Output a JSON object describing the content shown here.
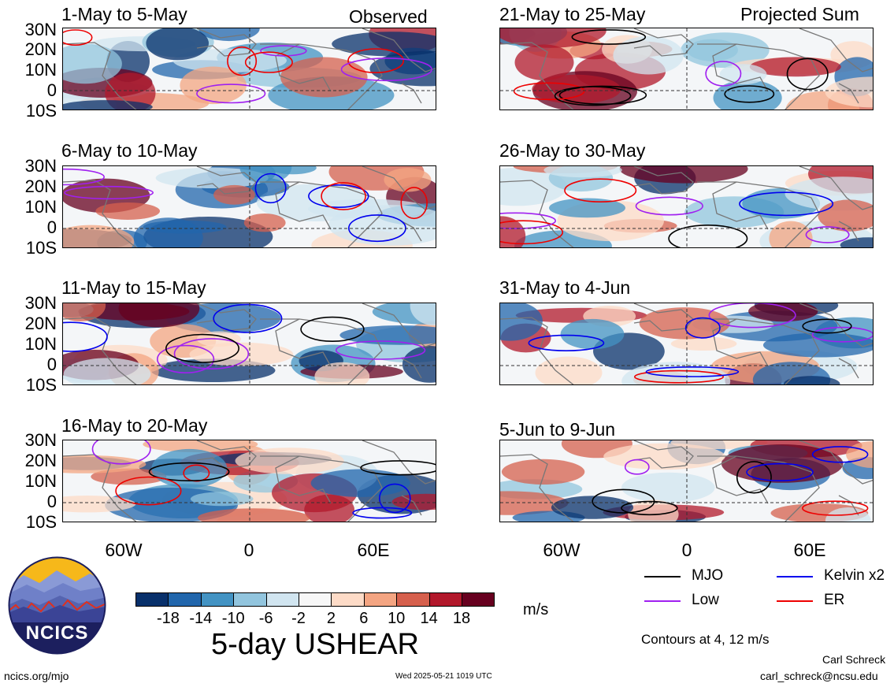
{
  "header": {
    "left_title": "Observed",
    "right_title": "Projected Sum"
  },
  "panels": [
    {
      "title": "1-May to 5-May"
    },
    {
      "title": "6-May to 10-May"
    },
    {
      "title": "11-May to 15-May"
    },
    {
      "title": "16-May to 20-May"
    },
    {
      "title": "21-May to 25-May"
    },
    {
      "title": "26-May to 30-May"
    },
    {
      "title": "31-May to 4-Jun"
    },
    {
      "title": "5-Jun to 9-Jun"
    }
  ],
  "lat_labels": [
    "30N",
    "20N",
    "10N",
    "0",
    "10S"
  ],
  "lon_labels": [
    "60W",
    "0",
    "60E"
  ],
  "colorbar": {
    "ticks": [
      "-18",
      "-14",
      "-10",
      "-6",
      "-2",
      "2",
      "6",
      "10",
      "14",
      "18"
    ],
    "colors": [
      "#08306b",
      "#2166ac",
      "#4393c3",
      "#92c5de",
      "#d1e5f0",
      "#f7f7f7",
      "#fddbc7",
      "#f4a582",
      "#d6604d",
      "#b2182b",
      "#67001f"
    ],
    "unit": "m/s"
  },
  "title": "5-day USHEAR",
  "legend": {
    "items": [
      {
        "label": "MJO",
        "color": "#000000"
      },
      {
        "label": "Kelvin x2",
        "color": "#0000ee"
      },
      {
        "label": "Low",
        "color": "#a020f0"
      },
      {
        "label": "ER",
        "color": "#ee0000"
      }
    ],
    "contours_note": "Contours at 4, 12 m/s"
  },
  "footer": {
    "logo_text": "NCICS",
    "url": "ncics.org/mjo",
    "timestamp": "Wed 2025-05-21 1019 UTC",
    "author": "Carl Schreck",
    "email": "carl_schreck@ncsu.edu"
  }
}
